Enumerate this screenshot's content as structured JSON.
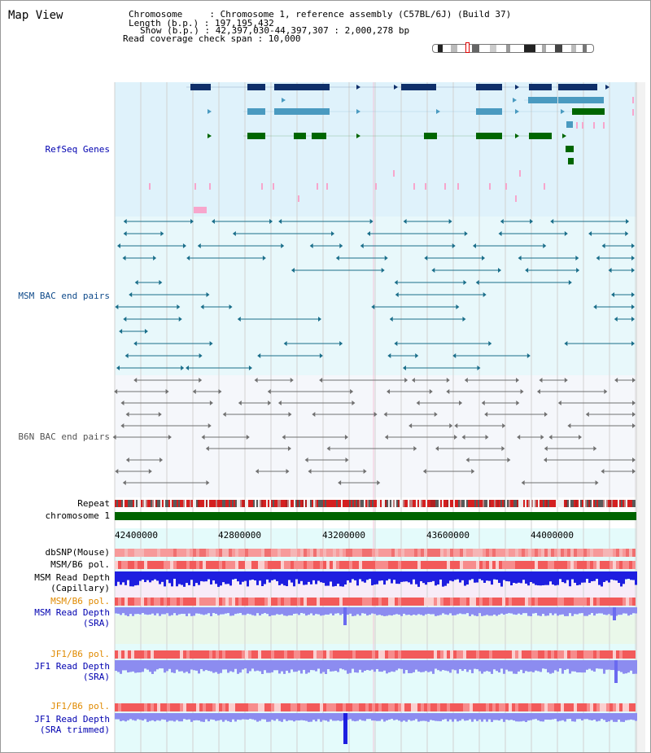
{
  "title": "Map View",
  "header": {
    "chromosome_label": "Chromosome     : Chromosome 1, reference assembly (C57BL/6J) (Build 37)",
    "length_label": "Length (b.p.) : 197,195,432",
    "show_label": "Show (b.p.) : 42,397,030-44,397,307 : 2,000,278 bp",
    "coverage_label": "Read coverage check span : 10,000"
  },
  "tracks": {
    "refseq": "RefSeq Genes",
    "msm_bac": "MSM BAC end pairs",
    "b6n_bac": "B6N BAC end pairs",
    "repeat": "Repeat",
    "chromosome": "chromosome 1",
    "dbsnp": "dbSNP(Mouse)",
    "msm_b6_pol_1": "MSM/B6 pol.",
    "msm_depth_cap_1": "MSM Read Depth",
    "msm_depth_cap_2": "(Capillary)",
    "msm_b6_pol_2": "MSM/B6 pol.",
    "msm_depth_sra_1": "MSM Read Depth",
    "msm_depth_sra_2": "(SRA)",
    "jf1_b6_pol_1": "JF1/B6 pol.",
    "jf1_depth_sra_1": "JF1 Read Depth",
    "jf1_depth_sra_2": "(SRA)",
    "jf1_b6_pol_2": "JF1/B6 pol.",
    "jf1_depth_trim_1": "JF1 Read Depth",
    "jf1_depth_trim_2": "(SRA trimmed)"
  },
  "axis": {
    "ticks": [
      "42400000",
      "42800000",
      "43200000",
      "43600000",
      "44000000"
    ]
  },
  "colors": {
    "refseq_band": "#dff2fb",
    "msm_band": "#e8f8fb",
    "b6n_band": "#f5f7fb",
    "track_band": "#e4fbfb",
    "gene_navy": "#0f2f6a",
    "gene_steel": "#4a9ac0",
    "gene_green": "#006600",
    "bac_teal": "#1a6e8a",
    "bac_gray": "#707070",
    "chrom_green": "#006400",
    "depth_blue": "#1e1ee0",
    "depth_lilac": "#8c8cf0"
  }
}
